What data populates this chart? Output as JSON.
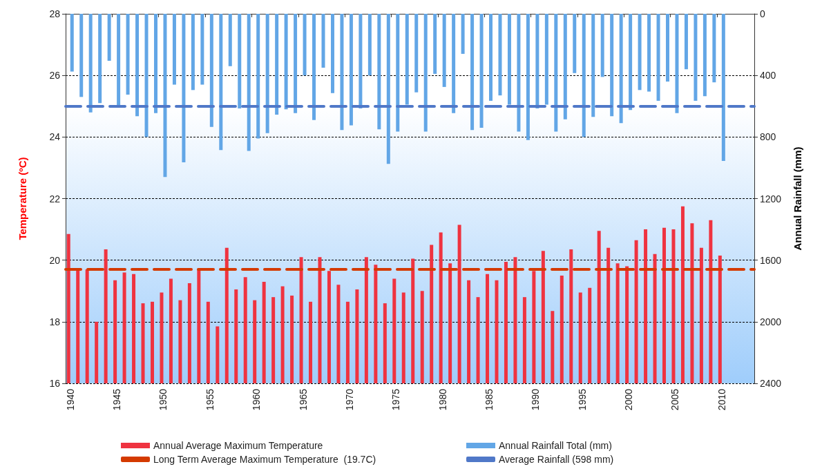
{
  "chart_data": {
    "type": "bar",
    "ylabel": "Temperature (ºC)",
    "y2label": "Annual Rainfall (mm)",
    "categories": [
      "1940",
      null,
      null,
      null,
      null,
      "1945",
      null,
      null,
      null,
      null,
      "1950",
      null,
      null,
      null,
      null,
      "1955",
      null,
      null,
      null,
      null,
      "1960",
      null,
      null,
      null,
      null,
      "1965",
      null,
      null,
      null,
      null,
      "1970",
      null,
      null,
      null,
      null,
      "1975",
      null,
      null,
      null,
      null,
      "1980",
      null,
      null,
      null,
      null,
      "1985",
      null,
      null,
      null,
      null,
      "1990",
      null,
      null,
      null,
      null,
      "1995",
      null,
      null,
      null,
      null,
      "2000",
      null,
      null,
      null,
      null,
      "2005",
      null,
      null,
      null,
      null,
      "2010",
      null,
      null,
      null
    ],
    "series": [
      {
        "name": "Annual Average Maximum Temperature",
        "color": "#ef3340",
        "values": [
          20.85,
          19.7,
          19.7,
          18.0,
          20.35,
          19.35,
          19.6,
          19.55,
          18.6,
          18.65,
          18.95,
          19.4,
          18.7,
          19.25,
          19.7,
          18.65,
          17.85,
          20.4,
          19.05,
          19.45,
          18.7,
          19.3,
          18.8,
          19.15,
          18.85,
          20.1,
          18.65,
          20.1,
          19.65,
          19.2,
          18.65,
          19.05,
          20.1,
          19.85,
          18.6,
          19.4,
          18.95,
          20.05,
          19.0,
          20.5,
          20.9,
          19.9,
          21.15,
          19.35,
          18.8,
          19.55,
          19.35,
          19.95,
          20.1,
          18.8,
          19.65,
          20.3,
          18.35,
          19.5,
          20.35,
          18.95,
          19.1,
          20.95,
          20.4,
          19.9,
          19.8,
          20.65,
          21.0,
          20.2,
          21.05,
          21.0,
          21.75,
          21.2,
          20.4,
          21.3,
          20.15,
          null,
          null,
          null
        ]
      },
      {
        "name": "Annual Rainfall Total (mm)",
        "color": "#62a6e6",
        "axis": "y2",
        "values": [
          375,
          540,
          640,
          580,
          305,
          600,
          525,
          665,
          800,
          645,
          1060,
          460,
          965,
          495,
          460,
          735,
          885,
          340,
          615,
          890,
          810,
          775,
          655,
          620,
          645,
          400,
          690,
          350,
          515,
          755,
          725,
          615,
          400,
          750,
          975,
          765,
          590,
          510,
          765,
          390,
          475,
          645,
          260,
          755,
          740,
          565,
          530,
          590,
          765,
          820,
          615,
          590,
          765,
          685,
          385,
          800,
          670,
          410,
          665,
          710,
          625,
          495,
          505,
          565,
          440,
          645,
          360,
          565,
          535,
          445,
          955,
          null,
          null,
          null
        ]
      }
    ],
    "ylim": [
      16,
      28
    ],
    "yticks": [
      16,
      18,
      20,
      22,
      24,
      26,
      28
    ],
    "y2lim": [
      2400,
      0
    ],
    "y2ticks": [
      0,
      400,
      800,
      1200,
      1600,
      2000,
      2400
    ],
    "ref_lines": [
      {
        "axis": "y",
        "value": 19.7,
        "label": "Long Term Average Maximum Temperature  (19.7C)",
        "color": "#d43a00",
        "line_style": "dashed"
      },
      {
        "axis": "y2",
        "value": 598,
        "label": "Average Rainfall (598 mm)",
        "color": "#5078c8",
        "line_style": "dashed"
      }
    ],
    "grid": "y",
    "legend": "bottom"
  }
}
